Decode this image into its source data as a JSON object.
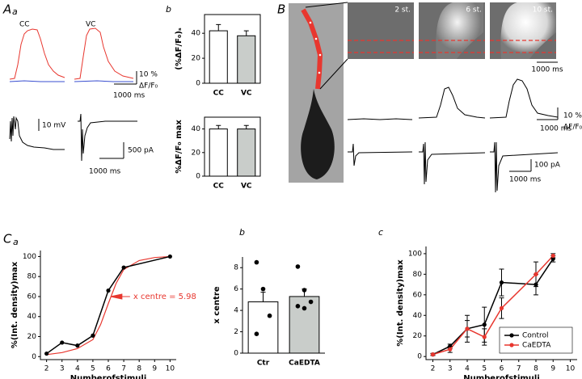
{
  "panel_labels": [
    "A",
    "a",
    "b",
    "B",
    "C",
    "a",
    "b",
    "c"
  ],
  "trace_labels": [
    "CC",
    "VC"
  ],
  "a_scale_labels": [
    "10 %",
    "ΔF/F₀",
    "1000 ms",
    "10 mV",
    "500 pA",
    "1000 ms"
  ],
  "image_labels": [
    "2 st.",
    "6 st.",
    "10 st."
  ],
  "b_scale_labels": [
    "1000 ms",
    "10 %",
    "ΔF/F₀",
    "1000 ms",
    "100 pA",
    "1000 ms"
  ],
  "chart_data": [
    {
      "type": "bar",
      "ylabel": "(%ΔF/F₀)ₛ",
      "categories": [
        "CC",
        "VC"
      ],
      "values": [
        42,
        38
      ],
      "errors": [
        5,
        4
      ],
      "colors": [
        "#ffffff",
        "#c9cdca"
      ],
      "ylim": [
        0,
        55
      ],
      "yticks": [
        0,
        20,
        40
      ]
    },
    {
      "type": "bar",
      "ylabel": "%ΔF/F₀ max",
      "categories": [
        "CC",
        "VC"
      ],
      "values": [
        40,
        40
      ],
      "errors": [
        3,
        3
      ],
      "colors": [
        "#ffffff",
        "#c9cdca"
      ],
      "ylim": [
        0,
        50
      ],
      "yticks": [
        0,
        20,
        40
      ]
    },
    {
      "type": "line",
      "xlabel": "Numberofstimuli",
      "ylabel": "%(Int. density)max",
      "x": [
        2,
        3,
        4,
        5,
        6,
        7,
        10
      ],
      "values": [
        3,
        14,
        11,
        21,
        66,
        89,
        100
      ],
      "color": "#000000",
      "fit": {
        "x": [
          2,
          3,
          4,
          5,
          5.5,
          6,
          6.5,
          7,
          8,
          9,
          10
        ],
        "values": [
          2,
          4,
          8,
          17,
          32,
          53,
          73,
          87,
          96,
          99,
          100
        ],
        "color": "#e8372f"
      },
      "annotation": "x centre = 5.98",
      "xlim": [
        1.6,
        10.4
      ],
      "xticks": [
        2,
        3,
        4,
        5,
        6,
        7,
        8,
        9,
        10
      ],
      "ylim": [
        -3,
        106
      ],
      "yticks": [
        0,
        20,
        40,
        60,
        80,
        100
      ]
    },
    {
      "type": "bar",
      "ylabel": "x centre",
      "categories": [
        "Ctr",
        "CaEDTA"
      ],
      "values": [
        4.8,
        5.3
      ],
      "errors": [
        0.9,
        0.7
      ],
      "points": [
        [
          8.5,
          6.0,
          3.5,
          1.8
        ],
        [
          8.1,
          5.9,
          4.8,
          4.4,
          4.2
        ]
      ],
      "colors": [
        "#ffffff",
        "#c9cdca"
      ],
      "ylim": [
        0,
        9
      ],
      "yticks": [
        0,
        2,
        4,
        6,
        8
      ]
    },
    {
      "type": "line",
      "xlabel": "Numberofstimuli",
      "ylabel": "%(Int. density)max",
      "x": [
        2,
        3,
        4,
        5,
        6,
        8,
        9
      ],
      "series": [
        {
          "name": "Control",
          "color": "#000000",
          "values": [
            2,
            10,
            27,
            31,
            72,
            70,
            95
          ],
          "errors": [
            1,
            2,
            8,
            17,
            13,
            10,
            3
          ]
        },
        {
          "name": "CaEDTA",
          "color": "#e8372f",
          "values": [
            2,
            7,
            27,
            19,
            47,
            80,
            98
          ],
          "errors": [
            1,
            3,
            13,
            8,
            10,
            12,
            2
          ]
        }
      ],
      "legend": "lower right",
      "xlim": [
        1.6,
        10.4
      ],
      "xticks": [
        2,
        3,
        4,
        5,
        6,
        7,
        8,
        9,
        10
      ],
      "ylim": [
        -3,
        107
      ],
      "yticks": [
        0,
        20,
        40,
        60,
        80,
        100
      ]
    }
  ]
}
